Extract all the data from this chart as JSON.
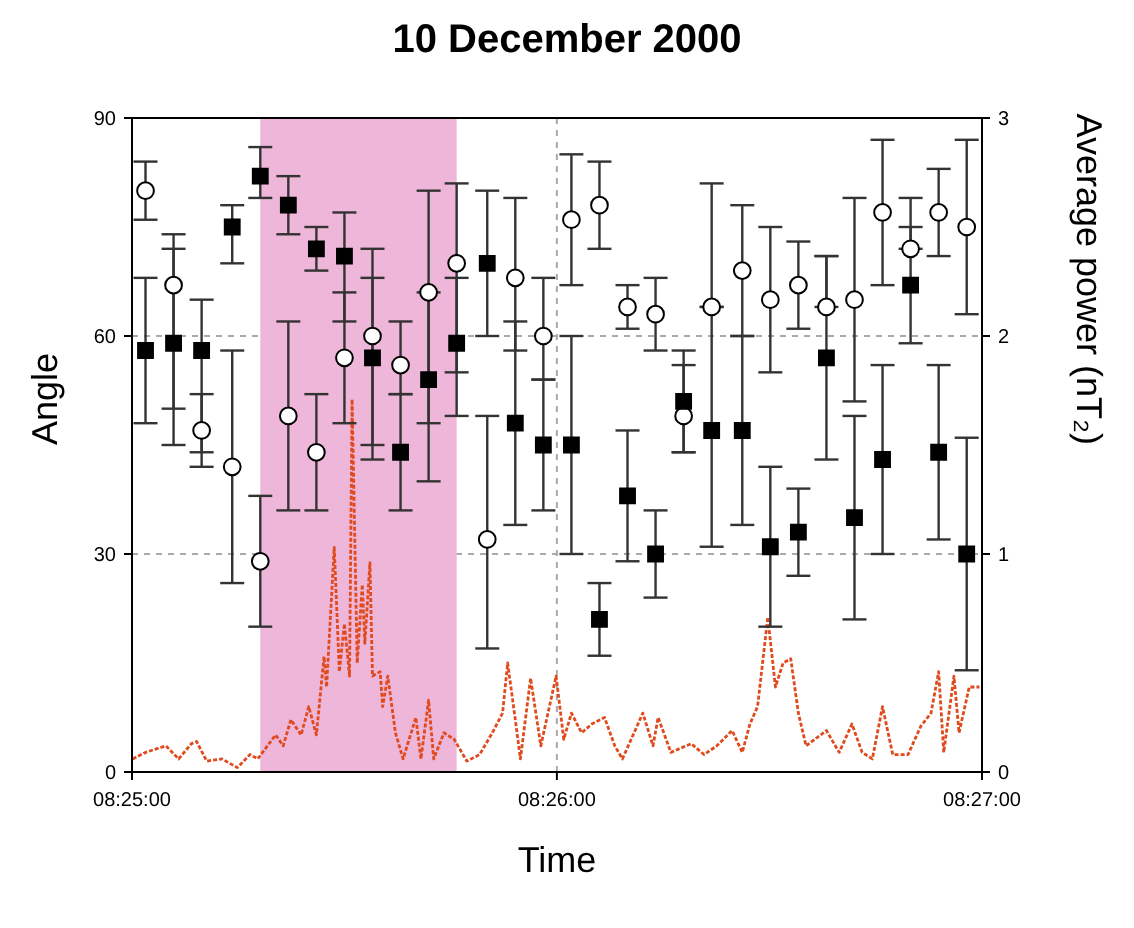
{
  "chart_data": {
    "type": "scatter",
    "title": "10 December 2000",
    "xlabel": "Time",
    "ylabel": "Angle",
    "y2label": "Average power (nT₂)",
    "x": [
      8.4172,
      8.4183,
      8.4194,
      8.4206,
      8.4217,
      8.4228,
      8.4239,
      8.425,
      8.4261,
      8.4272,
      8.4283,
      8.4294,
      8.4306,
      8.4317,
      8.4328,
      8.4339,
      8.435,
      8.4361,
      8.4372,
      8.4383,
      8.4394,
      8.4406,
      8.4417,
      8.4428,
      8.4439,
      8.445,
      8.4461,
      8.4472,
      8.4483,
      8.4494
    ],
    "xlim": [
      8.41667,
      8.45
    ],
    "xticks": [
      {
        "value": 8.41667,
        "label": "08:25:00"
      },
      {
        "value": 8.43333,
        "label": "08:26:00"
      },
      {
        "value": 8.45,
        "label": "08:27:00"
      }
    ],
    "ylim": [
      0,
      90
    ],
    "yticks": [
      0,
      30,
      60,
      90
    ],
    "y2lim": [
      0,
      3
    ],
    "y2ticks": [
      0,
      1,
      2,
      3
    ],
    "grid": true,
    "legend": false,
    "bands": [
      {
        "axis": "x",
        "from": 8.4217,
        "to": 8.4294,
        "color": "#eeb6d8"
      }
    ],
    "series": [
      {
        "type": "line",
        "axis": "y2",
        "color": "#e04a1c",
        "marker": "none",
        "line_style": "dotted",
        "x": [
          8.4167,
          8.4172,
          8.418,
          8.4185,
          8.419,
          8.4192,
          8.4196,
          8.4202,
          8.4208,
          8.4213,
          8.4216,
          8.4223,
          8.4226,
          8.4229,
          8.4233,
          8.4236,
          8.4239,
          8.4242,
          8.4243,
          8.4246,
          8.4248,
          8.425,
          8.4252,
          8.4253,
          8.4255,
          8.4257,
          8.4258,
          8.426,
          8.4261,
          8.4264,
          8.4265,
          8.4267,
          8.427,
          8.4273,
          8.4278,
          8.428,
          8.4283,
          8.4285,
          8.4289,
          8.4293,
          8.4298,
          8.4303,
          8.4308,
          8.4312,
          8.4314,
          8.4317,
          8.4319,
          8.4323,
          8.4327,
          8.4333,
          8.4336,
          8.4339,
          8.4343,
          8.4347,
          8.4352,
          8.4356,
          8.4359,
          8.4367,
          8.4371,
          8.4373,
          8.4378,
          8.4386,
          8.4391,
          8.4396,
          8.4402,
          8.4406,
          8.4409,
          8.4412,
          8.4416,
          8.4419,
          8.4422,
          8.4425,
          8.4428,
          8.4431,
          8.4439,
          8.4444,
          8.4449,
          8.4453,
          8.4457,
          8.4461,
          8.4465,
          8.4471,
          8.4476,
          8.448,
          8.4483,
          8.4485,
          8.4489,
          8.4491,
          8.4495,
          8.4499
        ],
        "values": [
          0.06,
          0.09,
          0.12,
          0.06,
          0.13,
          0.14,
          0.05,
          0.06,
          0.02,
          0.08,
          0.06,
          0.17,
          0.12,
          0.24,
          0.17,
          0.3,
          0.17,
          0.53,
          0.39,
          1.03,
          0.46,
          0.68,
          0.44,
          1.71,
          0.5,
          0.86,
          0.59,
          0.96,
          0.44,
          0.46,
          0.3,
          0.44,
          0.18,
          0.06,
          0.25,
          0.06,
          0.33,
          0.06,
          0.18,
          0.15,
          0.05,
          0.08,
          0.18,
          0.27,
          0.5,
          0.24,
          0.06,
          0.43,
          0.12,
          0.44,
          0.15,
          0.27,
          0.18,
          0.22,
          0.25,
          0.12,
          0.06,
          0.27,
          0.12,
          0.25,
          0.09,
          0.13,
          0.08,
          0.12,
          0.19,
          0.09,
          0.22,
          0.3,
          0.71,
          0.39,
          0.5,
          0.52,
          0.27,
          0.12,
          0.19,
          0.09,
          0.22,
          0.09,
          0.06,
          0.3,
          0.08,
          0.08,
          0.21,
          0.27,
          0.46,
          0.09,
          0.44,
          0.18,
          0.39,
          0.39
        ]
      },
      {
        "color": "#ffffff",
        "marker": "circle",
        "values": [
          80,
          67,
          47,
          42,
          29,
          49,
          44,
          57,
          60,
          56,
          66,
          70,
          32,
          68,
          60,
          76,
          78,
          64,
          63,
          49,
          64,
          69,
          65,
          67,
          64,
          65,
          77,
          72,
          77,
          75
        ],
        "errors": [
          [
            76,
            84
          ],
          [
            50,
            74
          ],
          [
            42,
            52
          ],
          [
            26,
            58
          ],
          [
            20,
            38
          ],
          [
            36,
            62
          ],
          [
            36,
            52
          ],
          [
            48,
            66
          ],
          [
            43,
            72
          ],
          [
            52,
            62
          ],
          [
            48,
            80
          ],
          [
            55,
            81
          ],
          [
            17,
            49
          ],
          [
            58,
            79
          ],
          [
            54,
            68
          ],
          [
            67,
            85
          ],
          [
            72,
            84
          ],
          [
            61,
            67
          ],
          [
            58,
            68
          ],
          [
            44,
            56
          ],
          [
            64,
            81
          ],
          [
            60,
            78
          ],
          [
            55,
            75
          ],
          [
            61,
            73
          ],
          [
            64,
            71
          ],
          [
            51,
            79
          ],
          [
            67,
            87
          ],
          [
            72,
            79
          ],
          [
            71,
            83
          ],
          [
            63,
            87
          ]
        ]
      },
      {
        "color": "#000000",
        "marker": "square",
        "values": [
          58,
          59,
          58,
          75,
          82,
          78,
          72,
          71,
          57,
          44,
          54,
          59,
          70,
          48,
          45,
          45,
          21,
          38,
          30,
          51,
          47,
          47,
          31,
          33,
          57,
          35,
          43,
          67,
          44,
          30
        ],
        "errors": [
          [
            48,
            68
          ],
          [
            45,
            72
          ],
          [
            44,
            65
          ],
          [
            70,
            78
          ],
          [
            79,
            86
          ],
          [
            74,
            82
          ],
          [
            69,
            75
          ],
          [
            62,
            77
          ],
          [
            45,
            68
          ],
          [
            36,
            52
          ],
          [
            40,
            66
          ],
          [
            49,
            68
          ],
          [
            60,
            80
          ],
          [
            34,
            62
          ],
          [
            36,
            54
          ],
          [
            30,
            60
          ],
          [
            16,
            26
          ],
          [
            29,
            47
          ],
          [
            24,
            36
          ],
          [
            44,
            58
          ],
          [
            31,
            64
          ],
          [
            34,
            60
          ],
          [
            20,
            42
          ],
          [
            27,
            39
          ],
          [
            43,
            71
          ],
          [
            21,
            49
          ],
          [
            30,
            56
          ],
          [
            59,
            75
          ],
          [
            32,
            56
          ],
          [
            14,
            46
          ]
        ]
      }
    ]
  }
}
